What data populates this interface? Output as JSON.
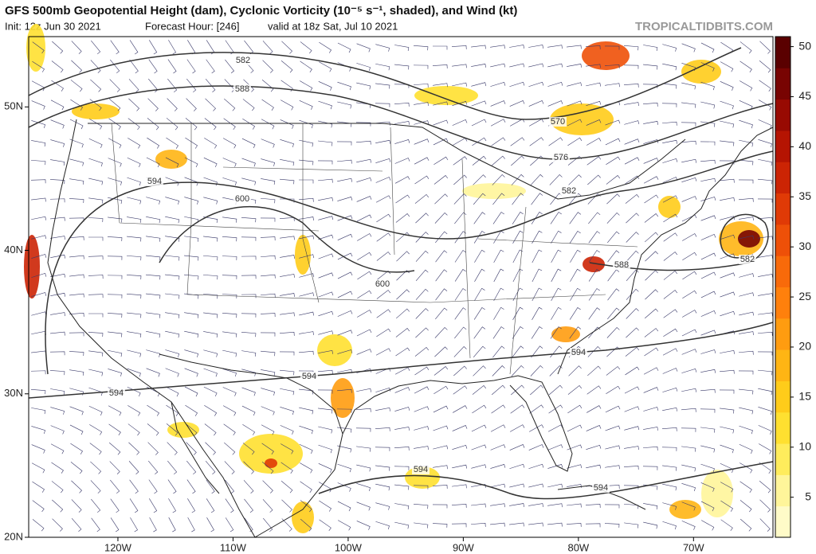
{
  "header": {
    "title": "GFS 500mb Geopotential Height (dam), Cyclonic Vorticity (10⁻⁵ s⁻¹, shaded), and Wind (kt)",
    "init": "Init: 12z Jun 30 2021",
    "forecast_hour": "Forecast Hour: [246]",
    "valid": "valid at 18z Sat, Jul 10 2021",
    "watermark": "TROPICALTIDBITS.COM"
  },
  "map": {
    "xlim": [
      -127.75,
      -63.1
    ],
    "ylim": [
      20,
      54.9
    ],
    "xticks": [
      {
        "value": -120,
        "label": "120W"
      },
      {
        "value": -110,
        "label": "110W"
      },
      {
        "value": -100,
        "label": "100W"
      },
      {
        "value": -90,
        "label": "90W"
      },
      {
        "value": -80,
        "label": "80W"
      },
      {
        "value": -70,
        "label": "70W"
      }
    ],
    "yticks": [
      {
        "value": 20,
        "label": "20N"
      },
      {
        "value": 30,
        "label": "30N"
      },
      {
        "value": 40,
        "label": "40N"
      },
      {
        "value": 50,
        "label": "50N"
      }
    ],
    "contour_labels": [
      582,
      588,
      594,
      600,
      600,
      570,
      576,
      582,
      588,
      582,
      594,
      594,
      594,
      594,
      594
    ]
  },
  "colorbar": {
    "lim": [
      1,
      51
    ],
    "ticks": [
      5,
      10,
      15,
      20,
      25,
      30,
      35,
      40,
      45,
      50
    ],
    "colors": [
      "#fffbc8",
      "#fff59a",
      "#ffec5c",
      "#ffe030",
      "#ffcc1a",
      "#ffb514",
      "#ff9c10",
      "#ff800c",
      "#f86a0a",
      "#ee5008",
      "#e03a06",
      "#cc2404",
      "#b51402",
      "#980a02",
      "#780402",
      "#5a0000"
    ]
  }
}
